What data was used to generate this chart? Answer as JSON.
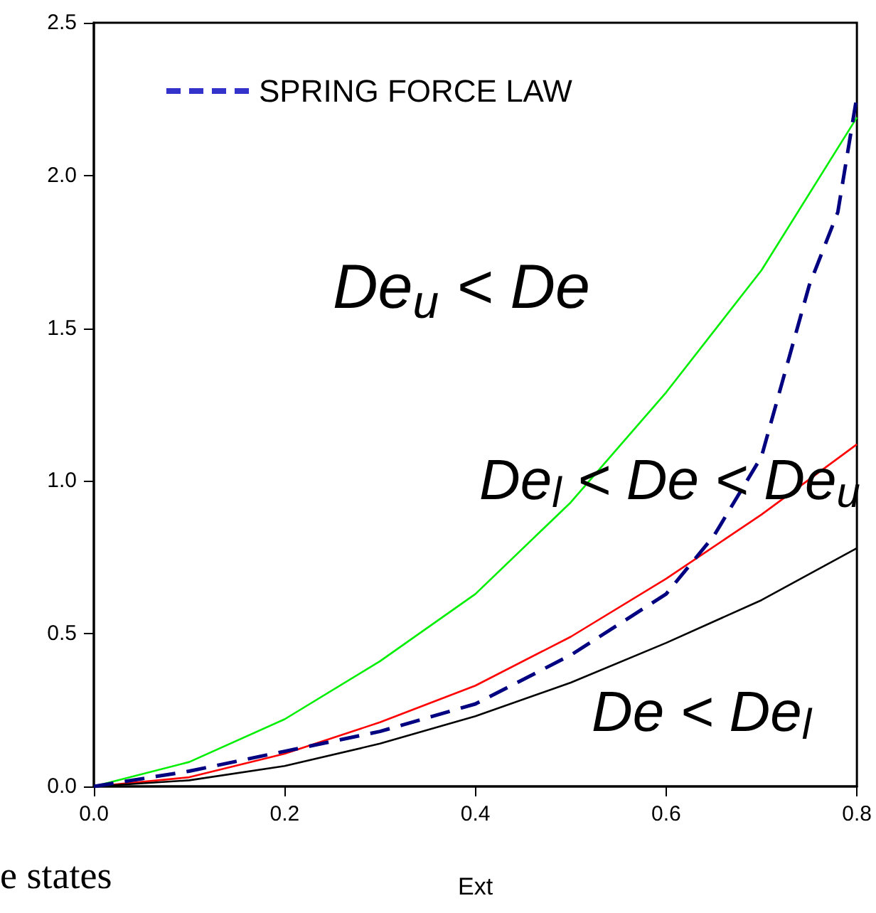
{
  "chart_data": {
    "type": "line",
    "xlabel": "Ext",
    "x": [
      0,
      0.1,
      0.2,
      0.3,
      0.4,
      0.5,
      0.6,
      0.7,
      0.8
    ],
    "series": [
      {
        "color": "#00ee00",
        "values": [
          0,
          0.08,
          0.22,
          0.41,
          0.63,
          0.93,
          1.29,
          1.69,
          2.19
        ]
      },
      {
        "color": "#ff0000",
        "values": [
          0,
          0.03,
          0.107,
          0.21,
          0.33,
          0.49,
          0.68,
          0.89,
          1.12
        ]
      },
      {
        "color": "#000000",
        "values": [
          0,
          0.02,
          0.067,
          0.14,
          0.23,
          0.34,
          0.47,
          0.61,
          0.78
        ]
      },
      {
        "name": "SPRING FORCE LAW",
        "color": "#000080",
        "line_style": "dashed",
        "x": [
          0,
          0.1,
          0.2,
          0.3,
          0.4,
          0.5,
          0.6,
          0.65,
          0.7,
          0.75,
          0.78,
          0.8
        ],
        "values": [
          0,
          0.05,
          0.115,
          0.18,
          0.27,
          0.43,
          0.63,
          0.82,
          1.08,
          1.64,
          1.88,
          2.26
        ]
      }
    ],
    "xlim": [
      0,
      0.8
    ],
    "ylim": [
      0,
      2.5
    ],
    "xticks": [
      {
        "value": 0,
        "label": "0.0"
      },
      0.2,
      0.4,
      0.6,
      0.8
    ],
    "yticks": [
      {
        "value": 0,
        "label": "0.0"
      },
      0.5,
      {
        "value": 1,
        "label": "1.0"
      },
      1.5,
      {
        "value": 2,
        "label": "2.0"
      },
      2.5
    ],
    "grid": false,
    "legend": "top left",
    "marker": "none",
    "line_style": "solid",
    "annotations": [
      "De$_{u}$ < De",
      "De$_{l}$ < De < De$_{u}$",
      "De < De$_{l}$",
      "e states"
    ]
  }
}
